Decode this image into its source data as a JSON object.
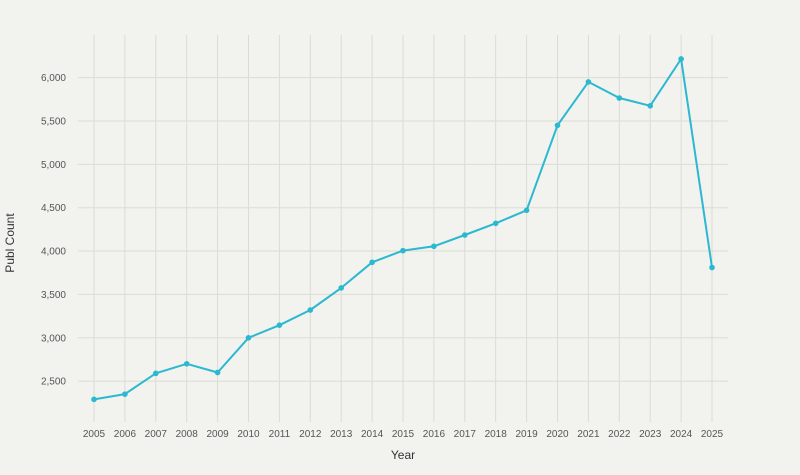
{
  "chart_data": {
    "type": "line",
    "title": "",
    "xlabel": "Year",
    "ylabel": "Publ Count",
    "categories": [
      "2005",
      "2006",
      "2007",
      "2008",
      "2009",
      "2010",
      "2011",
      "2012",
      "2013",
      "2014",
      "2015",
      "2016",
      "2017",
      "2018",
      "2019",
      "2020",
      "2021",
      "2022",
      "2023",
      "2024",
      "2025"
    ],
    "series": [
      {
        "values": [
          2290,
          2350,
          2590,
          2700,
          2600,
          3000,
          3145,
          3320,
          3575,
          3870,
          4005,
          4055,
          4185,
          4320,
          4470,
          5450,
          5950,
          5765,
          5675,
          6215,
          3810
        ]
      }
    ],
    "ylim": [
      2000,
      6500
    ],
    "yticks": [
      2500,
      3000,
      3500,
      4000,
      4500,
      5000,
      5500,
      6000
    ],
    "ytick_labels": [
      "2,500",
      "3,000",
      "3,500",
      "4,000",
      "4,500",
      "5,000",
      "5,500",
      "6,000"
    ],
    "grid": true,
    "colors": {
      "line": "#2bb8d1",
      "grid": "#dcdcd6",
      "background": "#f2f2ee"
    }
  }
}
